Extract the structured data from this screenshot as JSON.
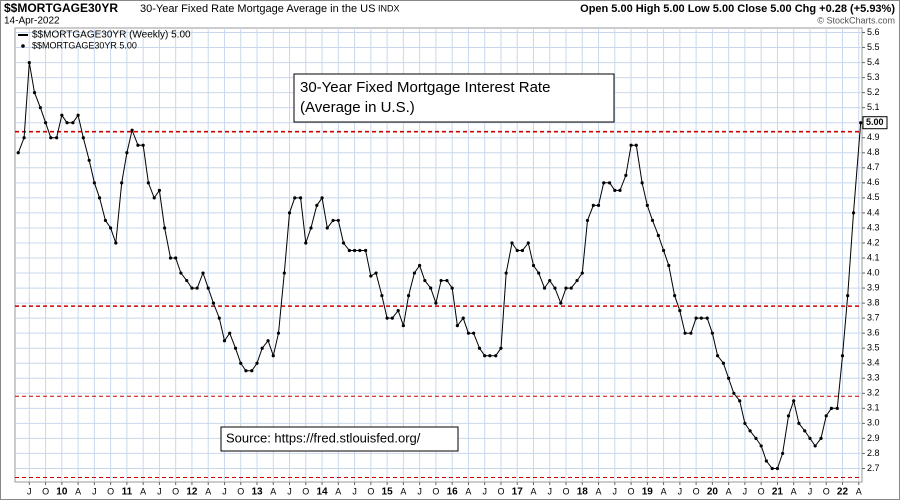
{
  "header": {
    "symbol_type": "INDX",
    "date": "14-Apr-2022",
    "quote": "Open 5.00  High 5.00  Low 5.00  Close 5.00  Chg +0.28 (+5.93%)",
    "credit": "© StockCharts.com",
    "legend": [
      "$$MORTGAGE30YR (Weekly) 5.00",
      "$$MORTGAGE30YR 5.00"
    ]
  },
  "chart_data": {
    "type": "line",
    "title": "$$MORTGAGE30YR",
    "subtitle": "30-Year Fixed Rate Mortgage Average in the US",
    "annotations": [
      "30-Year Fixed Mortgage Interest Rate",
      "(Average in U.S.)",
      "Source: https://fred.stlouisfed.org/"
    ],
    "last_label": {
      "value": 5.0,
      "label": "5.00"
    },
    "hlines": [
      4.94,
      3.78,
      3.18,
      2.64
    ],
    "hline_color": "#cc0000",
    "grid": true,
    "log_scale": false,
    "xlim": [
      2009.28,
      2022.3
    ],
    "ylim": [
      2.61,
      5.63
    ],
    "yticks": [
      2.7,
      2.8,
      2.9,
      {
        "value": 3,
        "label": "3.0"
      },
      3.1,
      3.2,
      3.3,
      3.4,
      3.5,
      3.6,
      3.7,
      3.8,
      3.9,
      {
        "value": 4,
        "label": "4.0"
      },
      4.1,
      4.2,
      4.3,
      4.4,
      4.5,
      4.6,
      4.7,
      4.8,
      4.9,
      {
        "value": 5,
        "label": "5.0"
      },
      5.1,
      5.2,
      5.3,
      5.4,
      5.5,
      5.6
    ],
    "xticks": [
      {
        "value": 2009.5,
        "label": "J"
      },
      {
        "value": 2009.75,
        "label": "O"
      },
      {
        "value": 2010,
        "label": "10"
      },
      {
        "value": 2010.25,
        "label": "A"
      },
      {
        "value": 2010.5,
        "label": "J"
      },
      {
        "value": 2010.75,
        "label": "O"
      },
      {
        "value": 2011,
        "label": "11"
      },
      {
        "value": 2011.25,
        "label": "A"
      },
      {
        "value": 2011.5,
        "label": "J"
      },
      {
        "value": 2011.75,
        "label": "O"
      },
      {
        "value": 2012,
        "label": "12"
      },
      {
        "value": 2012.25,
        "label": "A"
      },
      {
        "value": 2012.5,
        "label": "J"
      },
      {
        "value": 2012.75,
        "label": "O"
      },
      {
        "value": 2013,
        "label": "13"
      },
      {
        "value": 2013.25,
        "label": "A"
      },
      {
        "value": 2013.5,
        "label": "J"
      },
      {
        "value": 2013.75,
        "label": "O"
      },
      {
        "value": 2014,
        "label": "14"
      },
      {
        "value": 2014.25,
        "label": "A"
      },
      {
        "value": 2014.5,
        "label": "J"
      },
      {
        "value": 2014.75,
        "label": "O"
      },
      {
        "value": 2015,
        "label": "15"
      },
      {
        "value": 2015.25,
        "label": "A"
      },
      {
        "value": 2015.5,
        "label": "J"
      },
      {
        "value": 2015.75,
        "label": "O"
      },
      {
        "value": 2016,
        "label": "16"
      },
      {
        "value": 2016.25,
        "label": "A"
      },
      {
        "value": 2016.5,
        "label": "J"
      },
      {
        "value": 2016.75,
        "label": "O"
      },
      {
        "value": 2017,
        "label": "17"
      },
      {
        "value": 2017.25,
        "label": "A"
      },
      {
        "value": 2017.5,
        "label": "J"
      },
      {
        "value": 2017.75,
        "label": "O"
      },
      {
        "value": 2018,
        "label": "18"
      },
      {
        "value": 2018.25,
        "label": "A"
      },
      {
        "value": 2018.5,
        "label": "J"
      },
      {
        "value": 2018.75,
        "label": "O"
      },
      {
        "value": 2019,
        "label": "19"
      },
      {
        "value": 2019.25,
        "label": "A"
      },
      {
        "value": 2019.5,
        "label": "J"
      },
      {
        "value": 2019.75,
        "label": "O"
      },
      {
        "value": 2020,
        "label": "20"
      },
      {
        "value": 2020.25,
        "label": "A"
      },
      {
        "value": 2020.5,
        "label": "J"
      },
      {
        "value": 2020.75,
        "label": "O"
      },
      {
        "value": 2021,
        "label": "21"
      },
      {
        "value": 2021.25,
        "label": "A"
      },
      {
        "value": 2021.5,
        "label": "J"
      },
      {
        "value": 2021.75,
        "label": "O"
      },
      {
        "value": 2022,
        "label": "22"
      },
      {
        "value": 2022.25,
        "label": "A"
      }
    ],
    "x": [
      2009.33,
      2009.42,
      2009.5,
      2009.58,
      2009.67,
      2009.75,
      2009.83,
      2009.92,
      2010,
      2010.08,
      2010.17,
      2010.25,
      2010.33,
      2010.42,
      2010.5,
      2010.58,
      2010.67,
      2010.75,
      2010.83,
      2010.92,
      2011,
      2011.08,
      2011.17,
      2011.25,
      2011.33,
      2011.42,
      2011.5,
      2011.58,
      2011.67,
      2011.75,
      2011.83,
      2011.92,
      2012,
      2012.08,
      2012.17,
      2012.25,
      2012.33,
      2012.42,
      2012.5,
      2012.58,
      2012.67,
      2012.75,
      2012.83,
      2012.92,
      2013,
      2013.08,
      2013.17,
      2013.25,
      2013.33,
      2013.42,
      2013.5,
      2013.58,
      2013.67,
      2013.75,
      2013.83,
      2013.92,
      2014,
      2014.08,
      2014.17,
      2014.25,
      2014.33,
      2014.42,
      2014.5,
      2014.58,
      2014.67,
      2014.75,
      2014.83,
      2014.92,
      2015,
      2015.08,
      2015.17,
      2015.25,
      2015.33,
      2015.42,
      2015.5,
      2015.58,
      2015.67,
      2015.75,
      2015.83,
      2015.92,
      2016,
      2016.08,
      2016.17,
      2016.25,
      2016.33,
      2016.42,
      2016.5,
      2016.58,
      2016.67,
      2016.75,
      2016.83,
      2016.92,
      2017,
      2017.08,
      2017.17,
      2017.25,
      2017.33,
      2017.42,
      2017.5,
      2017.58,
      2017.67,
      2017.75,
      2017.83,
      2017.92,
      2018,
      2018.08,
      2018.17,
      2018.25,
      2018.33,
      2018.42,
      2018.5,
      2018.58,
      2018.67,
      2018.75,
      2018.83,
      2018.92,
      2019,
      2019.08,
      2019.17,
      2019.25,
      2019.33,
      2019.42,
      2019.5,
      2019.58,
      2019.67,
      2019.75,
      2019.83,
      2019.92,
      2020,
      2020.08,
      2020.17,
      2020.25,
      2020.33,
      2020.42,
      2020.5,
      2020.58,
      2020.67,
      2020.75,
      2020.83,
      2020.92,
      2021,
      2021.08,
      2021.17,
      2021.25,
      2021.33,
      2021.42,
      2021.5,
      2021.58,
      2021.67,
      2021.75,
      2021.83,
      2021.92,
      2022,
      2022.08,
      2022.17,
      2022.28
    ],
    "series": [
      {
        "name": "$$MORTGAGE30YR",
        "color": "#000000",
        "values": [
          4.8,
          4.9,
          5.4,
          5.2,
          5.1,
          5.0,
          4.9,
          4.9,
          5.05,
          5.0,
          5.0,
          5.05,
          4.9,
          4.75,
          4.6,
          4.5,
          4.35,
          4.3,
          4.2,
          4.6,
          4.8,
          4.95,
          4.85,
          4.85,
          4.6,
          4.5,
          4.55,
          4.3,
          4.1,
          4.1,
          4.0,
          3.95,
          3.9,
          3.9,
          4.0,
          3.9,
          3.8,
          3.7,
          3.55,
          3.6,
          3.5,
          3.4,
          3.35,
          3.35,
          3.4,
          3.5,
          3.55,
          3.45,
          3.6,
          4.0,
          4.4,
          4.5,
          4.5,
          4.2,
          4.3,
          4.45,
          4.5,
          4.3,
          4.35,
          4.35,
          4.2,
          4.15,
          4.15,
          4.15,
          4.15,
          3.98,
          4.0,
          3.85,
          3.7,
          3.7,
          3.75,
          3.65,
          3.85,
          4.0,
          4.05,
          3.95,
          3.9,
          3.8,
          3.95,
          3.95,
          3.9,
          3.65,
          3.7,
          3.6,
          3.6,
          3.5,
          3.45,
          3.45,
          3.45,
          3.5,
          4.0,
          4.2,
          4.15,
          4.15,
          4.2,
          4.05,
          4.0,
          3.9,
          3.95,
          3.9,
          3.8,
          3.9,
          3.9,
          3.95,
          4.0,
          4.35,
          4.45,
          4.45,
          4.6,
          4.6,
          4.55,
          4.55,
          4.65,
          4.85,
          4.85,
          4.6,
          4.45,
          4.35,
          4.25,
          4.15,
          4.05,
          3.85,
          3.75,
          3.6,
          3.6,
          3.7,
          3.7,
          3.7,
          3.6,
          3.45,
          3.4,
          3.3,
          3.2,
          3.15,
          3.0,
          2.95,
          2.9,
          2.85,
          2.75,
          2.7,
          2.7,
          2.8,
          3.05,
          3.15,
          3.0,
          2.95,
          2.9,
          2.85,
          2.9,
          3.05,
          3.1,
          3.1,
          3.45,
          3.85,
          4.4,
          5.0
        ]
      }
    ]
  }
}
